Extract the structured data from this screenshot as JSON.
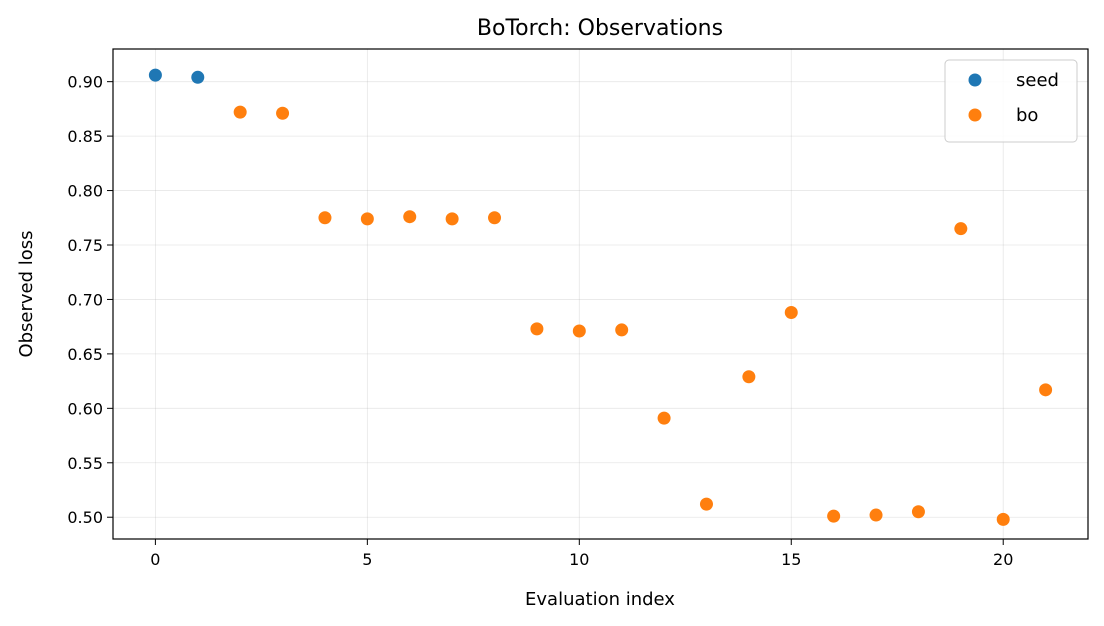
{
  "chart_data": {
    "type": "scatter",
    "title": "BoTorch: Observations",
    "xlabel": "Evaluation index",
    "ylabel": "Observed loss",
    "xlim": [
      -1,
      22
    ],
    "ylim": [
      0.48,
      0.93
    ],
    "xticks": [
      0,
      5,
      10,
      15,
      20
    ],
    "yticks": [
      0.5,
      0.55,
      0.6,
      0.65,
      0.7,
      0.75,
      0.8,
      0.85,
      0.9
    ],
    "grid": true,
    "legend_position": "top-right",
    "series": [
      {
        "name": "seed",
        "color": "#1f77b4",
        "points": [
          {
            "x": 0,
            "y": 0.906
          },
          {
            "x": 1,
            "y": 0.904
          }
        ]
      },
      {
        "name": "bo",
        "color": "#ff7f0e",
        "points": [
          {
            "x": 2,
            "y": 0.872
          },
          {
            "x": 3,
            "y": 0.871
          },
          {
            "x": 4,
            "y": 0.775
          },
          {
            "x": 5,
            "y": 0.774
          },
          {
            "x": 6,
            "y": 0.776
          },
          {
            "x": 7,
            "y": 0.774
          },
          {
            "x": 8,
            "y": 0.775
          },
          {
            "x": 9,
            "y": 0.673
          },
          {
            "x": 10,
            "y": 0.671
          },
          {
            "x": 11,
            "y": 0.672
          },
          {
            "x": 12,
            "y": 0.591
          },
          {
            "x": 13,
            "y": 0.512
          },
          {
            "x": 14,
            "y": 0.629
          },
          {
            "x": 15,
            "y": 0.688
          },
          {
            "x": 16,
            "y": 0.501
          },
          {
            "x": 17,
            "y": 0.502
          },
          {
            "x": 18,
            "y": 0.505
          },
          {
            "x": 19,
            "y": 0.765
          },
          {
            "x": 20,
            "y": 0.498
          },
          {
            "x": 21,
            "y": 0.617
          }
        ]
      }
    ]
  }
}
